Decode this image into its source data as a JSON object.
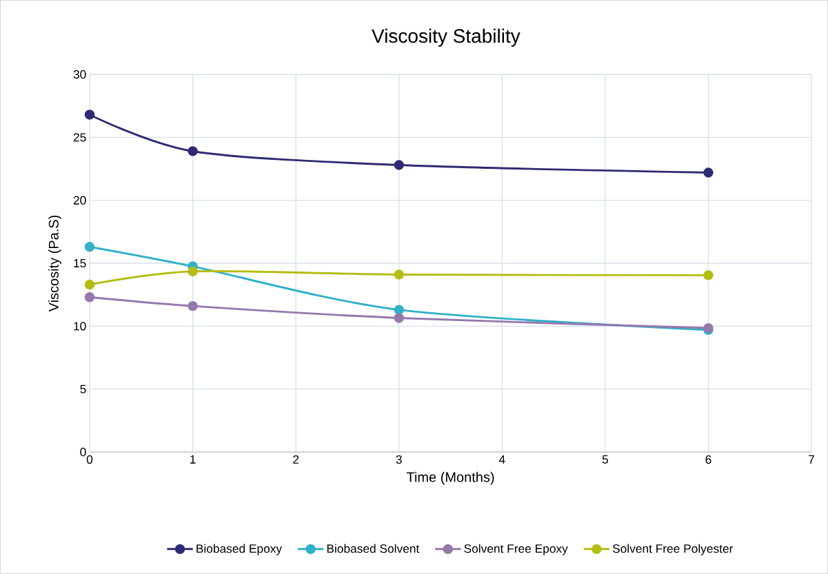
{
  "chart_data": {
    "type": "line",
    "title": "Viscosity Stability",
    "xlabel": "Time (Months)",
    "ylabel": "Viscosity (Pa.S)",
    "x": [
      0,
      1,
      3,
      6
    ],
    "series": [
      {
        "name": "Biobased Epoxy",
        "color": "#2e2a73",
        "values": [
          26.8,
          23.9,
          22.8,
          22.2
        ]
      },
      {
        "name": "Biobased Solvent",
        "color": "#31b0c9",
        "values": [
          16.3,
          14.75,
          11.3,
          9.7
        ]
      },
      {
        "name": "Solvent Free Epoxy",
        "color": "#9479ad",
        "values": [
          12.3,
          11.6,
          10.65,
          9.85
        ]
      },
      {
        "name": "Solvent Free Polyester",
        "color": "#b5bd14",
        "values": [
          13.3,
          14.35,
          14.1,
          14.05
        ]
      }
    ],
    "xlim": [
      0,
      7
    ],
    "xticks": [
      0,
      1,
      2,
      3,
      4,
      5,
      6,
      7
    ],
    "ylim": [
      0,
      30
    ],
    "yticks": [
      0,
      5,
      10,
      15,
      20,
      25,
      30
    ],
    "grid": true,
    "legend": "bottom",
    "marker": "circle",
    "line_style": "solid"
  }
}
